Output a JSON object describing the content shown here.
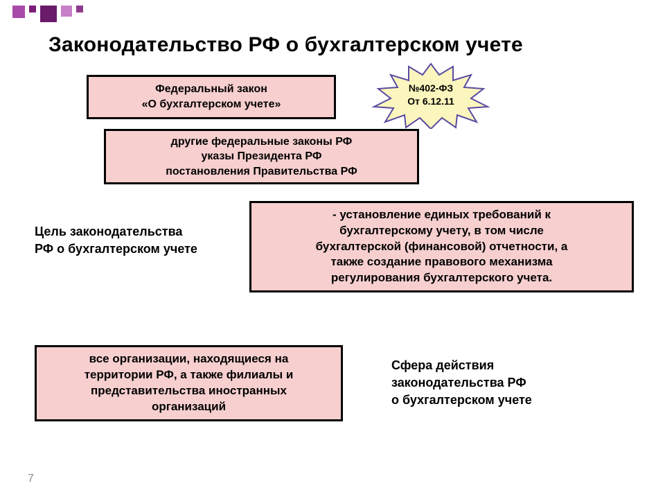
{
  "decor": {
    "squares": [
      {
        "size": 18,
        "color": "#a84aa8"
      },
      {
        "size": 10,
        "color": "#7a1e7a"
      },
      {
        "size": 24,
        "color": "#6a1b6a"
      },
      {
        "size": 16,
        "color": "#c77fc7"
      },
      {
        "size": 10,
        "color": "#8e3a8e"
      }
    ]
  },
  "title": "Законодательство РФ о бухгалтерском учете",
  "box1": {
    "line1": "Федеральный закон",
    "line2": "«О бухгалтерском учете»"
  },
  "burst": {
    "line1": "№402-ФЗ",
    "line2": "От 6.12.11",
    "fill": "#fbf6bd",
    "stroke": "#5a4aa0"
  },
  "box2": {
    "line1": "другие федеральные законы РФ",
    "line2": "указы Президента РФ",
    "line3": "постановления Правительства РФ"
  },
  "goal_label": {
    "line1": "Цель законодательства",
    "line2": "РФ о бухгалтерском учете"
  },
  "box3": {
    "line1": "- установление единых требований к",
    "line2": "бухгалтерскому учету, в том числе",
    "line3": "бухгалтерской (финансовой) отчетности, а",
    "line4": "также создание правового механизма",
    "line5": "регулирования бухгалтерского учета."
  },
  "box4": {
    "line1": "все организации, находящиеся на",
    "line2": "территории РФ, а также филиалы и",
    "line3": "представительства иностранных",
    "line4": "организаций"
  },
  "scope_label": {
    "line1": "Сфера действия",
    "line2": "законодательства РФ",
    "line3": "о бухгалтерском учете"
  },
  "page_number": "7",
  "colors": {
    "box_fill": "#f7cfcf",
    "box_border": "#000000",
    "background": "#ffffff",
    "pagenum": "#8b8b8b"
  }
}
